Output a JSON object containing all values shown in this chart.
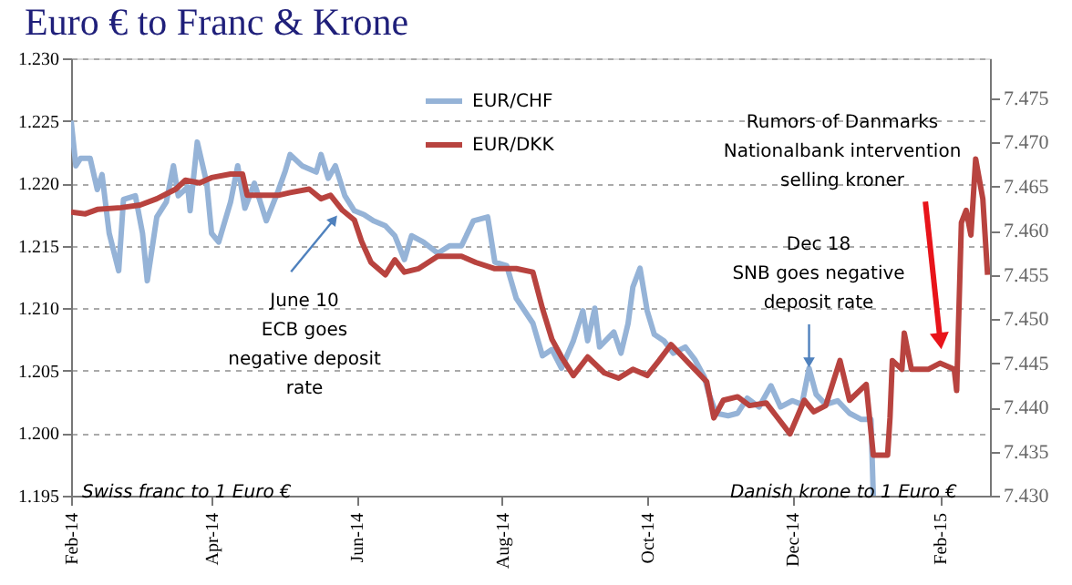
{
  "chart_data": {
    "type": "line",
    "title": "Euro € to Franc & Krone",
    "xlim": [
      "2014-02-01",
      "2015-02-22"
    ],
    "xticks": [
      {
        "value": "2014-02-01",
        "label": "Feb-14"
      },
      {
        "value": "2014-04-01",
        "label": "Apr-14"
      },
      {
        "value": "2014-06-01",
        "label": "Jun-14"
      },
      {
        "value": "2014-08-01",
        "label": "Aug-14"
      },
      {
        "value": "2014-10-01",
        "label": "Oct-14"
      },
      {
        "value": "2014-12-01",
        "label": "Dec-14"
      },
      {
        "value": "2015-02-01",
        "label": "Feb-15"
      }
    ],
    "ylim": [
      1.195,
      1.23
    ],
    "yticks": [
      {
        "value": 1.195,
        "label": "1.195"
      },
      {
        "value": 1.2,
        "label": "1.200"
      },
      {
        "value": 1.205,
        "label": "1.205"
      },
      {
        "value": 1.21,
        "label": "1.210"
      },
      {
        "value": 1.215,
        "label": "1.215"
      },
      {
        "value": 1.22,
        "label": "1.220"
      },
      {
        "value": 1.225,
        "label": "1.225"
      },
      {
        "value": 1.23,
        "label": "1.230"
      }
    ],
    "y2lim": [
      7.43,
      7.4795
    ],
    "y2ticks": [
      {
        "value": 7.43,
        "label": "7.430"
      },
      {
        "value": 7.435,
        "label": "7.435"
      },
      {
        "value": 7.44,
        "label": "7.440"
      },
      {
        "value": 7.445,
        "label": "7.445"
      },
      {
        "value": 7.45,
        "label": "7.450"
      },
      {
        "value": 7.455,
        "label": "7.455"
      },
      {
        "value": 7.46,
        "label": "7.460"
      },
      {
        "value": 7.465,
        "label": "7.465"
      },
      {
        "value": 7.47,
        "label": "7.470"
      },
      {
        "value": 7.475,
        "label": "7.475"
      }
    ],
    "grid": "y",
    "legend": "top right",
    "line_style": "solid",
    "marker": "none",
    "series": [
      {
        "name": "EUR/CHF",
        "color": "#95b3d7",
        "x": [
          "2014-02-01",
          "2014-02-03",
          "2014-02-05",
          "2014-02-09",
          "2014-02-12",
          "2014-02-14",
          "2014-02-17",
          "2014-02-21",
          "2014-02-23",
          "2014-02-28",
          "2014-03-03",
          "2014-03-05",
          "2014-03-09",
          "2014-03-13",
          "2014-03-16",
          "2014-03-18",
          "2014-03-22",
          "2014-03-23",
          "2014-03-26",
          "2014-03-30",
          "2014-04-01",
          "2014-04-04",
          "2014-04-09",
          "2014-04-12",
          "2014-04-15",
          "2014-04-19",
          "2014-04-24",
          "2014-04-29",
          "2014-05-02",
          "2014-05-04",
          "2014-05-09",
          "2014-05-15",
          "2014-05-17",
          "2014-05-20",
          "2014-05-23",
          "2014-05-27",
          "2014-05-31",
          "2014-06-04",
          "2014-06-08",
          "2014-06-13",
          "2014-06-17",
          "2014-06-21",
          "2014-06-24",
          "2014-06-29",
          "2014-07-05",
          "2014-07-10",
          "2014-07-15",
          "2014-07-20",
          "2014-07-26",
          "2014-07-29",
          "2014-08-03",
          "2014-08-07",
          "2014-08-14",
          "2014-08-18",
          "2014-08-22",
          "2014-08-26",
          "2014-08-31",
          "2014-09-04",
          "2014-09-06",
          "2014-09-09",
          "2014-09-11",
          "2014-09-17",
          "2014-09-20",
          "2014-09-23",
          "2014-09-25",
          "2014-09-28",
          "2014-10-01",
          "2014-10-04",
          "2014-10-08",
          "2014-10-12",
          "2014-10-17",
          "2014-10-21",
          "2014-10-25",
          "2014-10-27",
          "2014-10-30",
          "2014-11-04",
          "2014-11-08",
          "2014-11-12",
          "2014-11-17",
          "2014-11-22",
          "2014-11-26",
          "2014-12-01",
          "2014-12-05",
          "2014-12-08",
          "2014-12-11",
          "2014-12-15",
          "2014-12-20",
          "2014-12-25",
          "2014-12-30",
          "2015-01-03",
          "2015-01-04"
        ],
        "values": [
          1.225,
          1.2214,
          1.222,
          1.222,
          1.2195,
          1.2207,
          1.216,
          1.213,
          1.2187,
          1.219,
          1.216,
          1.2122,
          1.2173,
          1.2185,
          1.2214,
          1.219,
          1.2197,
          1.2178,
          1.2233,
          1.22,
          1.216,
          1.2153,
          1.2185,
          1.2214,
          1.218,
          1.22,
          1.217,
          1.2194,
          1.221,
          1.2223,
          1.2214,
          1.2209,
          1.2223,
          1.2204,
          1.2214,
          1.219,
          1.2178,
          1.2175,
          1.217,
          1.2166,
          1.2158,
          1.2139,
          1.2158,
          1.2153,
          1.2144,
          1.215,
          1.215,
          1.217,
          1.2173,
          1.2137,
          1.2134,
          1.2108,
          1.2088,
          1.2062,
          1.2067,
          1.2052,
          1.2074,
          1.2098,
          1.2074,
          1.21,
          1.2069,
          1.2081,
          1.2064,
          1.2088,
          1.2117,
          1.2132,
          1.2098,
          1.2079,
          1.2074,
          1.2064,
          1.2069,
          1.2059,
          1.2045,
          1.2031,
          1.2016,
          1.2014,
          1.2016,
          1.2028,
          1.2021,
          1.2038,
          1.2021,
          1.2026,
          1.2023,
          1.2052,
          1.2031,
          1.2023,
          1.2026,
          1.2016,
          1.2011,
          1.2011,
          1.195
        ]
      },
      {
        "name": "EUR/DKK",
        "color": "#b8433f",
        "axis": "y2",
        "x": [
          "2014-02-01",
          "2014-02-07",
          "2014-02-12",
          "2014-02-22",
          "2014-03-02",
          "2014-03-09",
          "2014-03-17",
          "2014-03-21",
          "2014-03-27",
          "2014-04-01",
          "2014-04-09",
          "2014-04-14",
          "2014-04-16",
          "2014-04-22",
          "2014-04-29",
          "2014-05-04",
          "2014-05-12",
          "2014-05-17",
          "2014-05-21",
          "2014-05-26",
          "2014-05-31",
          "2014-06-03",
          "2014-06-07",
          "2014-06-13",
          "2014-06-17",
          "2014-06-21",
          "2014-06-27",
          "2014-07-05",
          "2014-07-15",
          "2014-07-21",
          "2014-07-29",
          "2014-08-07",
          "2014-08-14",
          "2014-08-18",
          "2014-08-22",
          "2014-08-26",
          "2014-08-31",
          "2014-09-06",
          "2014-09-13",
          "2014-09-19",
          "2014-09-25",
          "2014-10-01",
          "2014-10-06",
          "2014-10-11",
          "2014-10-16",
          "2014-10-21",
          "2014-10-26",
          "2014-10-29",
          "2014-11-02",
          "2014-11-08",
          "2014-11-13",
          "2014-11-20",
          "2014-11-24",
          "2014-11-30",
          "2014-12-06",
          "2014-12-10",
          "2014-12-15",
          "2014-12-21",
          "2014-12-25",
          "2015-01-01",
          "2015-01-04",
          "2015-01-10",
          "2015-01-11",
          "2015-01-12",
          "2015-01-16",
          "2015-01-17",
          "2015-01-20",
          "2015-01-27",
          "2015-02-01",
          "2015-02-07",
          "2015-02-08",
          "2015-02-10",
          "2015-02-12",
          "2015-02-14",
          "2015-02-16",
          "2015-02-19",
          "2015-02-21"
        ],
        "values": [
          7.4621,
          7.4619,
          7.4624,
          7.4626,
          7.4629,
          7.4636,
          7.4647,
          7.4657,
          7.4654,
          7.466,
          7.4664,
          7.4664,
          7.464,
          7.464,
          7.464,
          7.4643,
          7.4647,
          7.4636,
          7.464,
          7.4623,
          7.4612,
          7.4588,
          7.4564,
          7.455,
          7.4567,
          7.4553,
          7.4557,
          7.4571,
          7.4571,
          7.4564,
          7.4557,
          7.4557,
          7.4553,
          7.4512,
          7.4477,
          7.4457,
          7.4436,
          7.4457,
          7.4439,
          7.4433,
          7.4443,
          7.4436,
          7.4453,
          7.4471,
          7.4457,
          7.4443,
          7.4429,
          7.4388,
          7.4408,
          7.4412,
          7.4402,
          7.4405,
          7.4391,
          7.437,
          7.4408,
          7.4395,
          7.4402,
          7.4453,
          7.4408,
          7.4426,
          7.4346,
          7.4346,
          7.4388,
          7.4453,
          7.4443,
          7.4484,
          7.4443,
          7.4443,
          7.445,
          7.4443,
          7.4419,
          7.4609,
          7.4623,
          7.4595,
          7.4681,
          7.4636,
          7.455
        ]
      }
    ],
    "annotations": [
      {
        "text": "June 10\nECB goes\nnegative deposit\nrate",
        "x": "2014-05-22",
        "y": 1.217
      },
      {
        "text": "Dec 18\nSNB goes negative\ndeposit rate",
        "x": "2014-12-08",
        "y": 1.2058
      },
      {
        "text": "Rumors of Danmarks\nNationalbank intervention\nselling kroner",
        "x": "2015-02-01",
        "y": 1.2076
      },
      "Swiss franc to 1 Euro €",
      "Danish krone to 1 Euro €"
    ]
  }
}
